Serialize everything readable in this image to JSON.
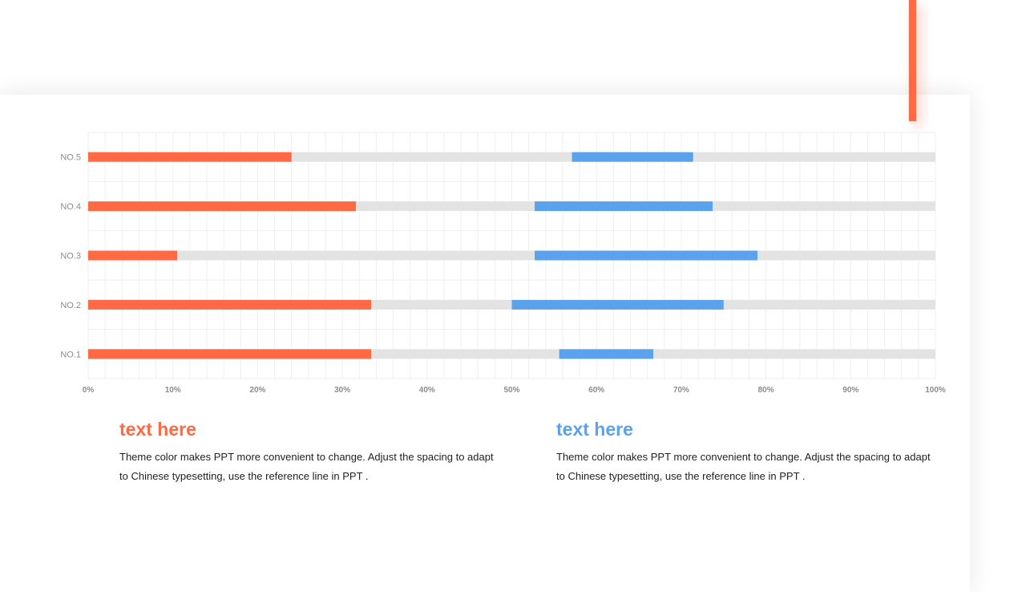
{
  "colors": {
    "orange": "#FF6A45",
    "blue": "#5BA2EC",
    "track": "#E3E3E3",
    "grid": "#EFEFEF",
    "tick": "#8C8C8C"
  },
  "chart_data": {
    "type": "bar",
    "orientation": "horizontal",
    "categories": [
      "NO.5",
      "NO.4",
      "NO.3",
      "NO.2",
      "NO.1"
    ],
    "xlim": [
      0,
      100
    ],
    "x_ticks": [
      "0%",
      "10%",
      "20%",
      "30%",
      "40%",
      "50%",
      "60%",
      "70%",
      "80%",
      "90%",
      "100%"
    ],
    "grid": true,
    "series": [
      {
        "color": "orange",
        "start": [
          0,
          0,
          0,
          0,
          0
        ],
        "end": [
          24,
          31.6,
          10.5,
          33.4,
          33.4
        ]
      },
      {
        "color": "blue",
        "start": [
          57.1,
          52.7,
          52.7,
          50.0,
          55.6
        ],
        "end": [
          71.4,
          73.7,
          79.0,
          75.0,
          66.7
        ]
      }
    ]
  },
  "blocks": [
    {
      "title": "text here",
      "body": "Theme color makes PPT more convenient to change. Adjust the spacing to adapt to Chinese typesetting, use the reference line in PPT ."
    },
    {
      "title": "text here",
      "body": "Theme color makes PPT more convenient to change. Adjust the spacing to adapt to Chinese typesetting, use the reference line in PPT ."
    }
  ]
}
